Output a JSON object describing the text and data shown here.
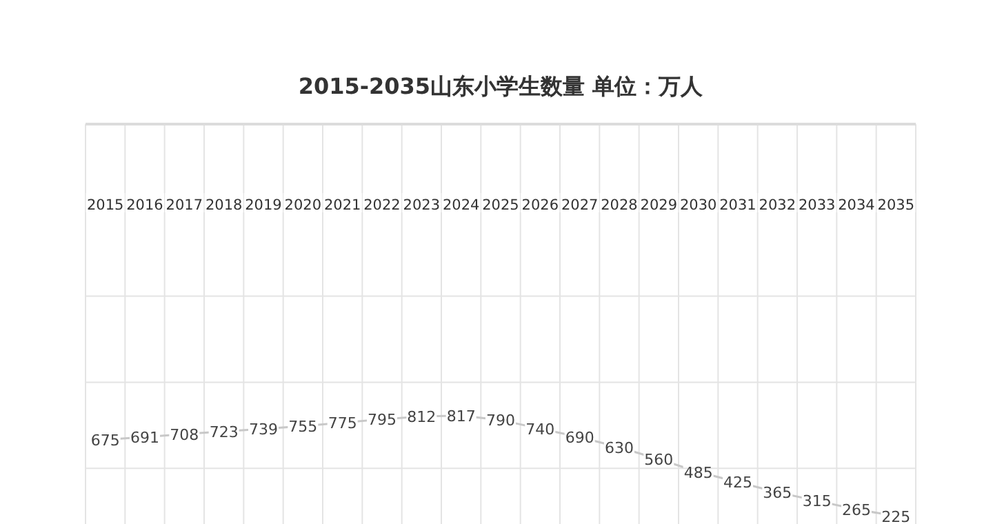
{
  "chart_data": {
    "type": "line",
    "title": "2015-2035山东小学生数量 单位：万人",
    "categories": [
      "2015",
      "2016",
      "2017",
      "2018",
      "2019",
      "2020",
      "2021",
      "2022",
      "2023",
      "2024",
      "2025",
      "2026",
      "2027",
      "2028",
      "2029",
      "2030",
      "2031",
      "2032",
      "2033",
      "2034",
      "2035"
    ],
    "series": [
      {
        "color": "#c8c8c8",
        "values": [
          675,
          691,
          708,
          723,
          739,
          755,
          775,
          795,
          812,
          817,
          790,
          740,
          690,
          630,
          560,
          485,
          425,
          365,
          315,
          265,
          225
        ]
      }
    ],
    "data_labels": true,
    "grid": true,
    "marker": "none",
    "line_style": "solid"
  }
}
